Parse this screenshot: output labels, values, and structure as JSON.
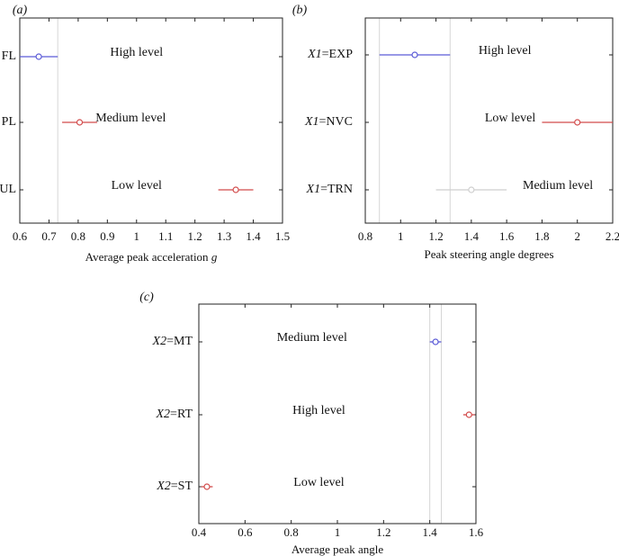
{
  "colors": {
    "blue": "#5a5ad6",
    "red": "#d24b4b",
    "light": "#cfcfcf",
    "gridline": "#d6d6d6"
  },
  "chart_data": [
    {
      "panel_label": "(a)",
      "type": "scatter",
      "subtype": "comparison-interval",
      "xlabel_prefix": "Average peak acceleration ",
      "xlabel_var": "g",
      "xlim": [
        0.6,
        1.5
      ],
      "xticks": [
        0.6,
        0.7,
        0.8,
        0.9,
        1,
        1.1,
        1.2,
        1.3,
        1.4,
        1.5
      ],
      "xtick_labels": [
        "0.6",
        "0.7",
        "0.8",
        "0.9",
        "1",
        "1.1",
        "1.2",
        "1.3",
        "1.4",
        "1.5"
      ],
      "reference_lines": [
        0.6,
        0.73
      ],
      "rows": [
        {
          "prefix": "",
          "label": "FL",
          "mean": 0.665,
          "low": 0.6,
          "high": 0.73,
          "color": "blue",
          "annotation": "High level",
          "annotation_x": 1.0
        },
        {
          "prefix": "",
          "label": "PL",
          "mean": 0.805,
          "low": 0.745,
          "high": 0.865,
          "color": "red",
          "annotation": "Medium level",
          "annotation_x": 0.98
        },
        {
          "prefix": "",
          "label": "UL",
          "mean": 1.34,
          "low": 1.28,
          "high": 1.4,
          "color": "red",
          "annotation": "Low level",
          "annotation_x": 1.0
        }
      ]
    },
    {
      "panel_label": "(b)",
      "type": "scatter",
      "subtype": "comparison-interval",
      "xlabel_prefix": "Peak steering angle degrees",
      "xlabel_var": "",
      "xlim": [
        0.8,
        2.2
      ],
      "xticks": [
        0.8,
        1,
        1.2,
        1.4,
        1.6,
        1.8,
        2,
        2.2
      ],
      "xtick_labels": [
        "0.8",
        "1",
        "1.2",
        "1.4",
        "1.6",
        "1.8",
        "2",
        "2.2"
      ],
      "reference_lines": [
        0.88,
        1.28
      ],
      "rows": [
        {
          "prefix": "X1",
          "label": "=EXP",
          "mean": 1.08,
          "low": 0.88,
          "high": 1.28,
          "color": "blue",
          "annotation": "High level",
          "annotation_x": 1.59
        },
        {
          "prefix": "X1",
          "label": "=NVC",
          "mean": 2.0,
          "low": 1.8,
          "high": 2.2,
          "color": "red",
          "annotation": "Low level",
          "annotation_x": 1.62
        },
        {
          "prefix": "X1",
          "label": "=TRN",
          "mean": 1.4,
          "low": 1.2,
          "high": 1.6,
          "color": "light",
          "annotation": "Medium level",
          "annotation_x": 1.89
        }
      ]
    },
    {
      "panel_label": "(c)",
      "type": "scatter",
      "subtype": "comparison-interval",
      "xlabel_prefix": "Average peak angle",
      "xlabel_var": "",
      "xlim": [
        0.4,
        1.6
      ],
      "xticks": [
        0.4,
        0.6,
        0.8,
        1,
        1.2,
        1.4,
        1.6
      ],
      "xtick_labels": [
        "0.4",
        "0.6",
        "0.8",
        "1",
        "1.2",
        "1.4",
        "1.6"
      ],
      "reference_lines": [
        1.4,
        1.45
      ],
      "rows": [
        {
          "prefix": "X2",
          "label": "=MT",
          "mean": 1.425,
          "low": 1.4,
          "high": 1.45,
          "color": "blue",
          "annotation": "Medium level",
          "annotation_x": 0.89
        },
        {
          "prefix": "X2",
          "label": "=RT",
          "mean": 1.57,
          "low": 1.545,
          "high": 1.595,
          "color": "red",
          "annotation": "High level",
          "annotation_x": 0.92
        },
        {
          "prefix": "X2",
          "label": "=ST",
          "mean": 0.435,
          "low": 0.41,
          "high": 0.46,
          "color": "red",
          "annotation": "Low level",
          "annotation_x": 0.92
        }
      ]
    }
  ]
}
